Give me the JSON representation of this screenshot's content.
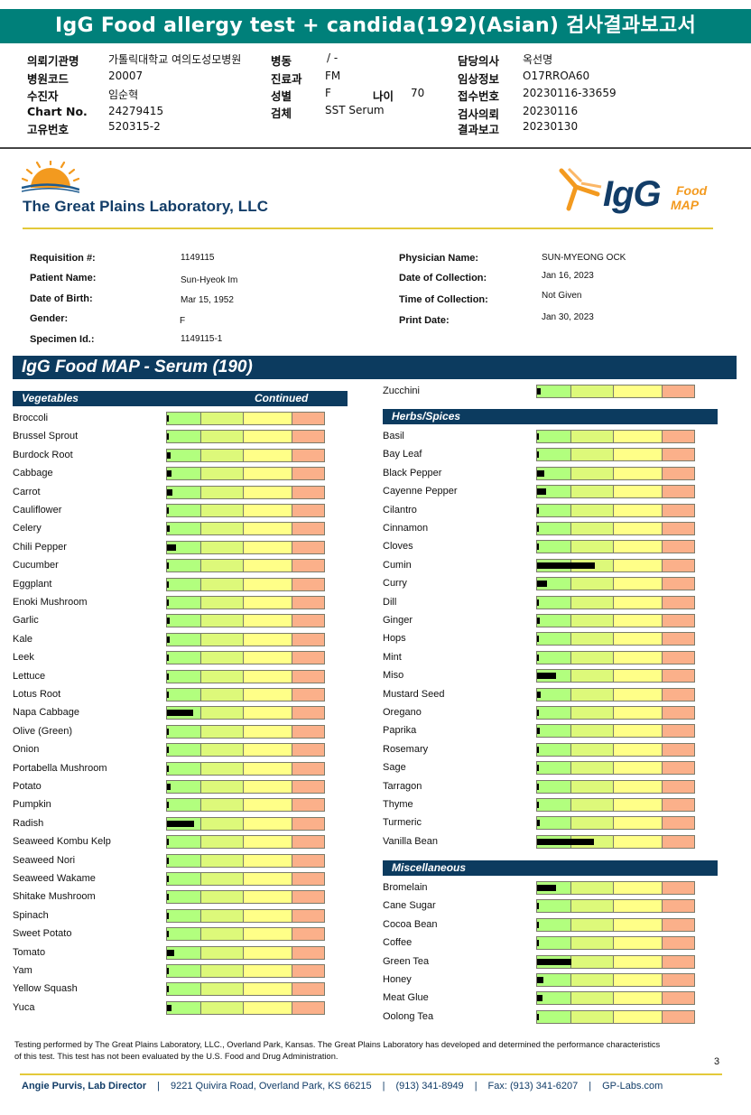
{
  "report_title": "IgG Food allergy test + candida(192)(Asian) 검사결과보고서",
  "kr_header": [
    {
      "label": "의뢰기관명",
      "value": "가톨릭대학교 여의도성모병원"
    },
    {
      "label": "병원코드",
      "value": "20007"
    },
    {
      "label": "수진자",
      "value": "임순혁"
    },
    {
      "label": "Chart No.",
      "value": "24279415"
    },
    {
      "label": "고유번호",
      "value": "520315-2"
    },
    {
      "label": "병동",
      "value": "/ -"
    },
    {
      "label": "진료과",
      "value": "FM"
    },
    {
      "label": "성별",
      "value": "F"
    },
    {
      "label": "나이",
      "value": "70"
    },
    {
      "label": "검체",
      "value": "SST Serum"
    },
    {
      "label": "담당의사",
      "value": "옥선명"
    },
    {
      "label": "임상정보",
      "value": "O17RROA60"
    },
    {
      "label": "접수번호",
      "value": "20230116-33659"
    },
    {
      "label": "검사의뢰",
      "value": "20230116"
    },
    {
      "label": "결과보고",
      "value": "20230130"
    }
  ],
  "lab_name": "The Great Plains Laboratory, LLC",
  "logo": {
    "igg": "IgG",
    "food": "Food",
    "map": "MAP"
  },
  "patient_info": {
    "left": [
      {
        "label": "Requisition #:",
        "value": "1149115"
      },
      {
        "label": "Patient Name:",
        "value": "Sun-Hyeok Im"
      },
      {
        "label": "Date of Birth:",
        "value": "Mar 15, 1952"
      },
      {
        "label": "Gender:",
        "value": "F"
      },
      {
        "label": "Specimen Id.:",
        "value": "1149115-1"
      }
    ],
    "right": [
      {
        "label": "Physician Name:",
        "value": "SUN-MYEONG OCK"
      },
      {
        "label": "Date of Collection:",
        "value": "Jan 16, 2023"
      },
      {
        "label": "Time of Collection:",
        "value": "Not Given"
      },
      {
        "label": "Print Date:",
        "value": "Jan 30, 2023"
      }
    ]
  },
  "banner": "IgG Food MAP - Serum (190)",
  "categories": {
    "vegetables": {
      "title": "Vegetables",
      "suffix": "Continued"
    },
    "herbs": {
      "title": "Herbs/Spices"
    },
    "misc": {
      "title": "Miscellaneous"
    }
  },
  "levels_note": "bar = fraction of gauge width filled",
  "vegetables": [
    {
      "name": "Broccoli",
      "level": 0.012
    },
    {
      "name": "Brussel Sprout",
      "level": 0.012
    },
    {
      "name": "Burdock Root",
      "level": 0.025
    },
    {
      "name": "Cabbage",
      "level": 0.03
    },
    {
      "name": "Carrot",
      "level": 0.035
    },
    {
      "name": "Cauliflower",
      "level": 0.012
    },
    {
      "name": "Celery",
      "level": 0.02
    },
    {
      "name": "Chili Pepper",
      "level": 0.06
    },
    {
      "name": "Cucumber",
      "level": 0.008
    },
    {
      "name": "Eggplant",
      "level": 0.005
    },
    {
      "name": "Enoki Mushroom",
      "level": 0.008
    },
    {
      "name": "Garlic",
      "level": 0.02
    },
    {
      "name": "Kale",
      "level": 0.02
    },
    {
      "name": "Leek",
      "level": 0.008
    },
    {
      "name": "Lettuce",
      "level": 0.012
    },
    {
      "name": "Lotus Root",
      "level": 0.008
    },
    {
      "name": "Napa Cabbage",
      "level": 0.165
    },
    {
      "name": "Olive (Green)",
      "level": 0.005
    },
    {
      "name": "Onion",
      "level": 0.005
    },
    {
      "name": "Portabella Mushroom",
      "level": 0.01
    },
    {
      "name": "Potato",
      "level": 0.025
    },
    {
      "name": "Pumpkin",
      "level": 0.005
    },
    {
      "name": "Radish",
      "level": 0.17
    },
    {
      "name": "Seaweed Kombu Kelp",
      "level": 0.008
    },
    {
      "name": "Seaweed Nori",
      "level": 0.008
    },
    {
      "name": "Seaweed Wakame",
      "level": 0.005
    },
    {
      "name": "Shitake Mushroom",
      "level": 0.008
    },
    {
      "name": "Spinach",
      "level": 0.008
    },
    {
      "name": "Sweet Potato",
      "level": 0.005
    },
    {
      "name": "Tomato",
      "level": 0.045
    },
    {
      "name": "Yam",
      "level": 0.008
    },
    {
      "name": "Yellow Squash",
      "level": 0.012
    },
    {
      "name": "Yuca",
      "level": 0.03
    }
  ],
  "zucchini": {
    "name": "Zucchini",
    "level": 0.025
  },
  "herbs": [
    {
      "name": "Basil",
      "level": 0.008
    },
    {
      "name": "Bay Leaf",
      "level": 0.008
    },
    {
      "name": "Black Pepper",
      "level": 0.045
    },
    {
      "name": "Cayenne Pepper",
      "level": 0.055
    },
    {
      "name": "Cilantro",
      "level": 0.012
    },
    {
      "name": "Cinnamon",
      "level": 0.008
    },
    {
      "name": "Cloves",
      "level": 0.005
    },
    {
      "name": "Cumin",
      "level": 0.37
    },
    {
      "name": "Curry",
      "level": 0.065
    },
    {
      "name": "Dill",
      "level": 0.008
    },
    {
      "name": "Ginger",
      "level": 0.02
    },
    {
      "name": "Hops",
      "level": 0.008
    },
    {
      "name": "Mint",
      "level": 0.008
    },
    {
      "name": "Miso",
      "level": 0.12
    },
    {
      "name": "Mustard Seed",
      "level": 0.025
    },
    {
      "name": "Oregano",
      "level": 0.005
    },
    {
      "name": "Paprika",
      "level": 0.02
    },
    {
      "name": "Rosemary",
      "level": 0.008
    },
    {
      "name": "Sage",
      "level": 0.008
    },
    {
      "name": "Tarragon",
      "level": 0.008
    },
    {
      "name": "Thyme",
      "level": 0.005
    },
    {
      "name": "Turmeric",
      "level": 0.02
    },
    {
      "name": "Vanilla Bean",
      "level": 0.36
    }
  ],
  "misc": [
    {
      "name": "Bromelain",
      "level": 0.12
    },
    {
      "name": "Cane Sugar",
      "level": 0.008
    },
    {
      "name": "Cocoa Bean",
      "level": 0.012
    },
    {
      "name": "Coffee",
      "level": 0.012
    },
    {
      "name": "Green Tea",
      "level": 0.22
    },
    {
      "name": "Honey",
      "level": 0.04
    },
    {
      "name": "Meat Glue",
      "level": 0.035
    },
    {
      "name": "Oolong Tea",
      "level": 0.008
    }
  ],
  "footer_note": "Testing performed by The Great Plains Laboratory, LLC., Overland Park, Kansas.  The Great Plains Laboratory has developed and determined the performance characteristics of this test.  This test has not been evaluated by the U.S. Food and Drug Administration.",
  "page_number": "3",
  "footer": {
    "director": "Angie Purvis, Lab Director",
    "address": "9221 Quivira Road, Overland Park, KS 66215",
    "phone": "(913) 341-8949",
    "fax": "Fax: (913) 341-6207",
    "web": "GP-Labs.com"
  },
  "colors": {
    "teal": "#00807a",
    "navy": "#0c3b5f",
    "gold": "#e3c93a",
    "orange": "#f39a1f"
  }
}
